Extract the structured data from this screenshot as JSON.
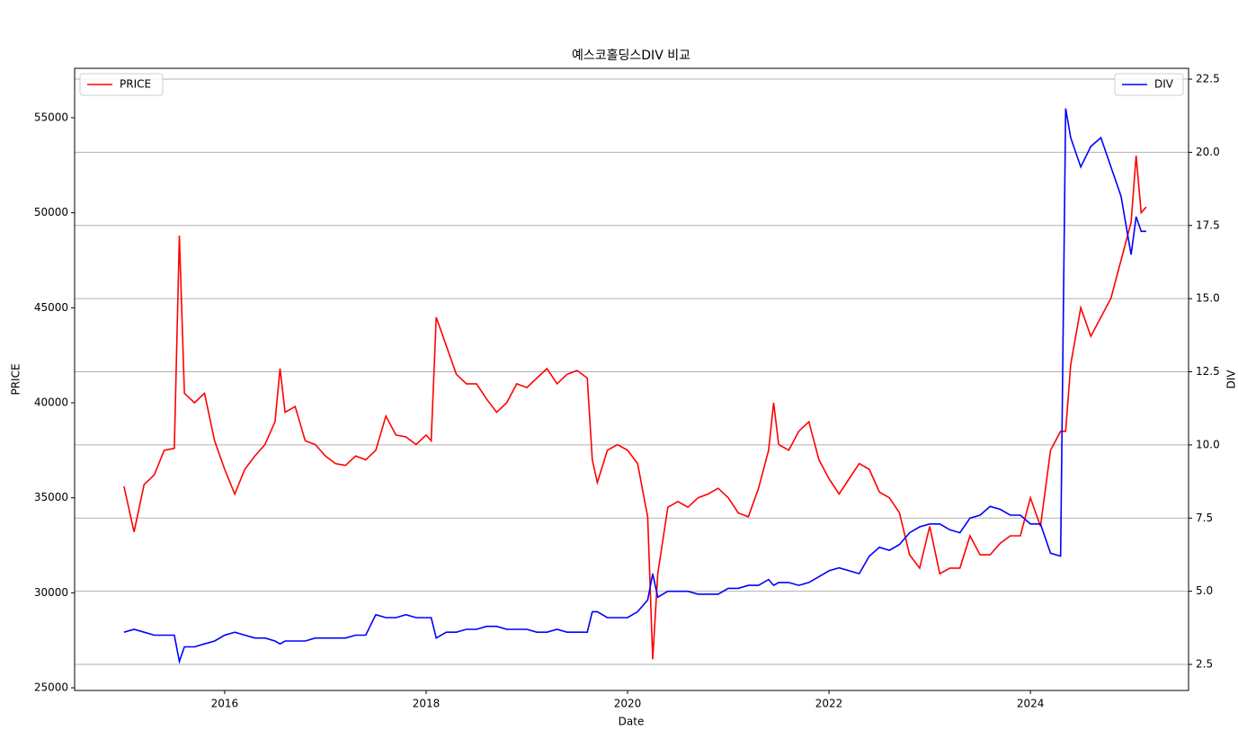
{
  "chart_data": {
    "type": "line",
    "title": "예스코홀딩스DIV 비교",
    "xlabel": "Date",
    "ylabel": "PRICE",
    "y2label": "DIV",
    "x": [
      2015.0,
      2015.1,
      2015.2,
      2015.3,
      2015.4,
      2015.5,
      2015.55,
      2015.6,
      2015.7,
      2015.8,
      2015.9,
      2016.0,
      2016.1,
      2016.2,
      2016.3,
      2016.4,
      2016.5,
      2016.55,
      2016.6,
      2016.7,
      2016.8,
      2016.9,
      2017.0,
      2017.1,
      2017.2,
      2017.3,
      2017.4,
      2017.5,
      2017.6,
      2017.7,
      2017.8,
      2017.9,
      2018.0,
      2018.05,
      2018.1,
      2018.2,
      2018.3,
      2018.4,
      2018.5,
      2018.6,
      2018.7,
      2018.8,
      2018.9,
      2019.0,
      2019.1,
      2019.2,
      2019.3,
      2019.4,
      2019.5,
      2019.6,
      2019.65,
      2019.7,
      2019.8,
      2019.9,
      2020.0,
      2020.1,
      2020.2,
      2020.25,
      2020.3,
      2020.4,
      2020.5,
      2020.6,
      2020.7,
      2020.8,
      2020.9,
      2021.0,
      2021.1,
      2021.2,
      2021.3,
      2021.4,
      2021.45,
      2021.5,
      2021.6,
      2021.7,
      2021.8,
      2021.9,
      2022.0,
      2022.1,
      2022.2,
      2022.3,
      2022.4,
      2022.5,
      2022.6,
      2022.7,
      2022.8,
      2022.9,
      2023.0,
      2023.1,
      2023.2,
      2023.3,
      2023.4,
      2023.5,
      2023.6,
      2023.7,
      2023.8,
      2023.9,
      2024.0,
      2024.1,
      2024.2,
      2024.3,
      2024.35,
      2024.4,
      2024.5,
      2024.6,
      2024.7,
      2024.8,
      2024.9,
      2025.0,
      2025.05,
      2025.1,
      2025.15
    ],
    "series": [
      {
        "name": "PRICE",
        "color": "#ff0000",
        "axis": "y",
        "legend": "upper left",
        "values": [
          35600,
          33200,
          35700,
          36200,
          37500,
          37600,
          48800,
          40500,
          40000,
          40500,
          38000,
          36500,
          35200,
          36500,
          37200,
          37800,
          39000,
          41800,
          39500,
          39800,
          38000,
          37800,
          37200,
          36800,
          36700,
          37200,
          37000,
          37500,
          39300,
          38300,
          38200,
          37800,
          38300,
          38000,
          44500,
          43000,
          41500,
          41000,
          41000,
          40200,
          39500,
          40000,
          41000,
          40800,
          41300,
          41800,
          41000,
          41500,
          41700,
          41300,
          37000,
          35800,
          37500,
          37800,
          37500,
          36800,
          34000,
          26500,
          31000,
          34500,
          34800,
          34500,
          35000,
          35200,
          35500,
          35000,
          34200,
          34000,
          35500,
          37500,
          40000,
          37800,
          37500,
          38500,
          39000,
          37000,
          36000,
          35200,
          36000,
          36800,
          36500,
          35300,
          35000,
          34200,
          32000,
          31300,
          33500,
          31000,
          31300,
          31300,
          33000,
          32000,
          32000,
          32600,
          33000,
          33000,
          35000,
          33500,
          37500,
          38500,
          38500,
          42000,
          45000,
          43500,
          44500,
          45500,
          47500,
          49500,
          53000,
          50000,
          50300
        ]
      },
      {
        "name": "DIV",
        "color": "#0000ff",
        "axis": "y2",
        "legend": "upper right",
        "values": [
          3.6,
          3.7,
          3.6,
          3.5,
          3.5,
          3.5,
          2.6,
          3.1,
          3.1,
          3.2,
          3.3,
          3.5,
          3.6,
          3.5,
          3.4,
          3.4,
          3.3,
          3.2,
          3.3,
          3.3,
          3.3,
          3.4,
          3.4,
          3.4,
          3.4,
          3.5,
          3.5,
          4.2,
          4.1,
          4.1,
          4.2,
          4.1,
          4.1,
          4.1,
          3.4,
          3.6,
          3.6,
          3.7,
          3.7,
          3.8,
          3.8,
          3.7,
          3.7,
          3.7,
          3.6,
          3.6,
          3.7,
          3.6,
          3.6,
          3.6,
          4.3,
          4.3,
          4.1,
          4.1,
          4.1,
          4.3,
          4.7,
          5.6,
          4.8,
          5.0,
          5.0,
          5.0,
          4.9,
          4.9,
          4.9,
          5.1,
          5.1,
          5.2,
          5.2,
          5.4,
          5.2,
          5.3,
          5.3,
          5.2,
          5.3,
          5.5,
          5.7,
          5.8,
          5.7,
          5.6,
          6.2,
          6.5,
          6.4,
          6.6,
          7.0,
          7.2,
          7.3,
          7.3,
          7.1,
          7.0,
          7.5,
          7.6,
          7.9,
          7.8,
          7.6,
          7.6,
          7.3,
          7.3,
          6.3,
          6.2,
          21.5,
          20.5,
          19.5,
          20.2,
          20.5,
          19.5,
          18.5,
          16.5,
          17.8,
          17.3,
          17.3
        ]
      }
    ],
    "xlim": [
      2014.51,
      2025.57
    ],
    "xticks": [
      2016,
      2018,
      2020,
      2022,
      2024
    ],
    "ylim": [
      24860,
      57600
    ],
    "yticks": [
      25000,
      30000,
      35000,
      40000,
      45000,
      50000,
      55000
    ],
    "y2lim": [
      1.61,
      22.87
    ],
    "y2ticks": [
      2.5,
      {
        "value": 5,
        "label": "5.0"
      },
      7.5,
      {
        "value": 10,
        "label": "10.0"
      },
      12.5,
      {
        "value": 15,
        "label": "15.0"
      },
      17.5,
      {
        "value": 20,
        "label": "20.0"
      },
      22.5
    ],
    "grid": "y2"
  }
}
